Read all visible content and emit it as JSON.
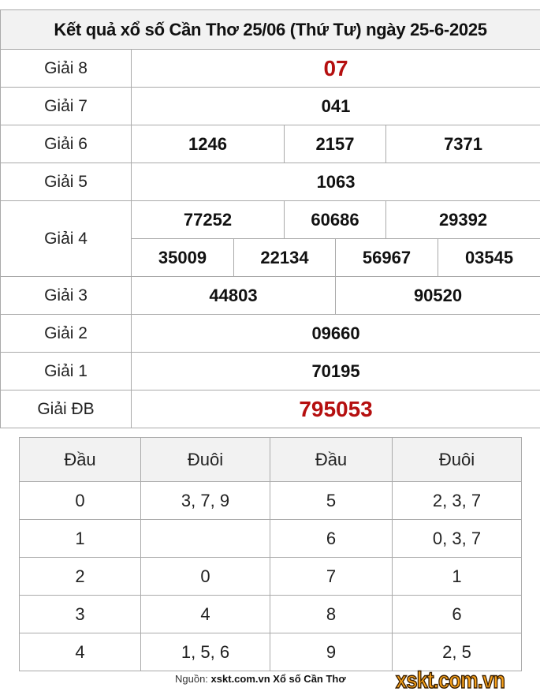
{
  "title": "Kết quả xổ số Cần Thơ 25/06 (Thứ Tư) ngày 25-6-2025",
  "prizes": {
    "g8": {
      "label": "Giải 8",
      "values": [
        "07"
      ]
    },
    "g7": {
      "label": "Giải 7",
      "values": [
        "041"
      ]
    },
    "g6": {
      "label": "Giải 6",
      "values": [
        "1246",
        "2157",
        "7371"
      ]
    },
    "g5": {
      "label": "Giải 5",
      "values": [
        "1063"
      ]
    },
    "g4": {
      "label": "Giải 4",
      "values": [
        "77252",
        "60686",
        "29392",
        "35009",
        "22134",
        "56967",
        "03545"
      ]
    },
    "g3": {
      "label": "Giải 3",
      "values": [
        "44803",
        "90520"
      ]
    },
    "g2": {
      "label": "Giải 2",
      "values": [
        "09660"
      ]
    },
    "g1": {
      "label": "Giải 1",
      "values": [
        "70195"
      ]
    },
    "gdb": {
      "label": "Giải ĐB",
      "values": [
        "795053"
      ]
    }
  },
  "loto": {
    "headers": [
      "Đầu",
      "Đuôi",
      "Đầu",
      "Đuôi"
    ],
    "rows": [
      [
        "0",
        "3, 7, 9",
        "5",
        "2, 3, 7"
      ],
      [
        "1",
        "",
        "6",
        "0, 3, 7"
      ],
      [
        "2",
        "0",
        "7",
        "1"
      ],
      [
        "3",
        "4",
        "8",
        "6"
      ],
      [
        "4",
        "1, 5, 6",
        "9",
        "2, 5"
      ]
    ]
  },
  "footer": {
    "prefix": "Nguồn:",
    "source": "xskt.com.vn Xổ số Cần Thơ"
  },
  "logo": "xskt.com.vn",
  "colors": {
    "special": "#b50f0f",
    "header_bg": "#f2f2f2"
  }
}
